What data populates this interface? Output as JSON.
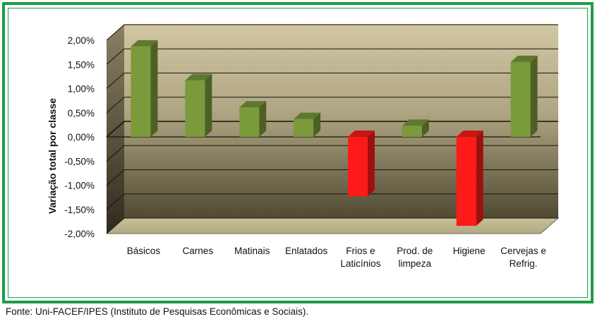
{
  "chart_data": {
    "type": "bar",
    "categories": [
      [
        "Básicos"
      ],
      [
        "Carnes"
      ],
      [
        "Matinais"
      ],
      [
        "Enlatados"
      ],
      [
        "Frios e",
        "Laticínios"
      ],
      [
        "Prod. de",
        "limpeza"
      ],
      [
        "Higiene"
      ],
      [
        "Cervejas e",
        "Refrig."
      ]
    ],
    "values": [
      1.87,
      1.17,
      0.61,
      0.37,
      -1.23,
      0.23,
      -1.84,
      1.55
    ],
    "ylabel": "Variação total por classe",
    "ylim": [
      -2.0,
      2.0
    ],
    "yticks": [
      "2,00%",
      "1,50%",
      "1,00%",
      "0,50%",
      "0,00%",
      "-0,50%",
      "-1,00%",
      "-1,50%",
      "-2,00%"
    ],
    "grid": true,
    "colors": {
      "positive": "#7a9a3c",
      "negative": "#ff1a1a",
      "frame": "#1e9b47"
    }
  },
  "footer": {
    "source": "Fonte: Uni-FACEF/IPES (Instituto de Pesquisas Econômicas e Sociais)."
  }
}
